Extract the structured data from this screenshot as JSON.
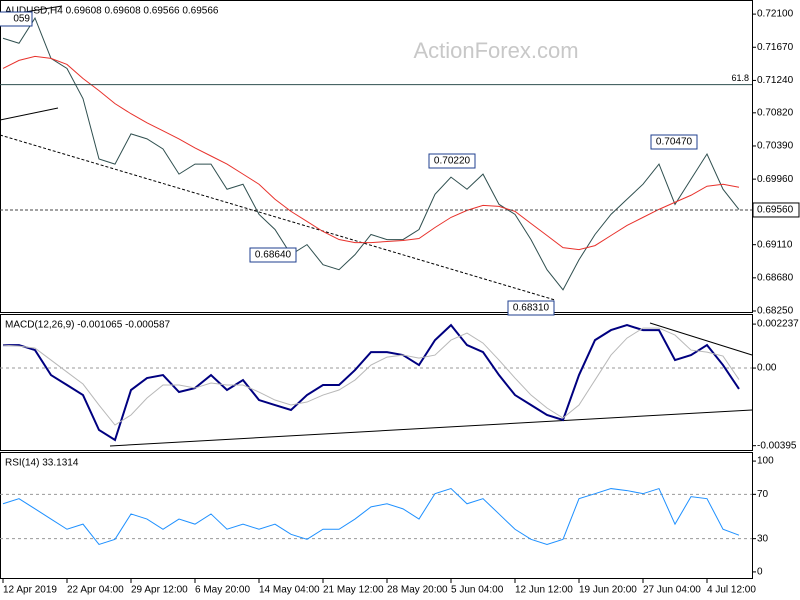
{
  "chart_data": [
    {
      "type": "line",
      "title": "AUDUSD,H4 0.69608 0.69608 0.69566 0.69566",
      "watermark": "ActionForex.com",
      "categories": [
        "12 Apr 2019",
        null,
        null,
        null,
        "22 Apr 04:00",
        null,
        null,
        null,
        "29 Apr 12:00",
        null,
        null,
        null,
        "6 May 20:00",
        null,
        null,
        null,
        "14 May 04:00",
        null,
        null,
        null,
        "21 May 12:00",
        null,
        null,
        null,
        "28 May 20:00",
        null,
        null,
        null,
        "5 Jun 04:00",
        null,
        null,
        null,
        "12 Jun 12:00",
        null,
        null,
        null,
        "19 Jun 20:00",
        null,
        null,
        null,
        "27 Jun 04:00",
        null,
        null,
        null,
        "4 Jul 12:00",
        null,
        null
      ],
      "series": [
        {
          "color": "#2f4f4f",
          "values": [
            0.71787,
            0.71722,
            0.72048,
            0.71526,
            0.71395,
            0.71004,
            0.70221,
            0.70155,
            0.70547,
            0.70482,
            0.70351,
            0.70025,
            0.70155,
            0.70155,
            0.69829,
            0.69894,
            0.69503,
            0.69307,
            0.68981,
            0.69111,
            0.6885,
            0.68785,
            0.68981,
            0.69242,
            0.69176,
            0.69176,
            0.69307,
            0.69764,
            0.69986,
            0.69829,
            0.70025,
            0.69633,
            0.69503,
            0.69176,
            0.68785,
            0.68524,
            0.68915,
            0.69242,
            0.69503,
            0.69699,
            0.69894,
            0.70155,
            0.69633,
            0.6996,
            0.70286,
            0.69829,
            0.69566
          ]
        },
        {
          "color": "#e8322c",
          "values": [
            0.71395,
            0.715,
            0.71552,
            0.71526,
            0.71447,
            0.71265,
            0.71108,
            0.70939,
            0.70808,
            0.70691,
            0.70586,
            0.70482,
            0.70364,
            0.7026,
            0.70155,
            0.70025,
            0.69894,
            0.69699,
            0.69542,
            0.69412,
            0.69281,
            0.69177,
            0.69137,
            0.69137,
            0.69151,
            0.69164,
            0.6919,
            0.69333,
            0.69464,
            0.69555,
            0.6962,
            0.69607,
            0.69542,
            0.69385,
            0.69229,
            0.69072,
            0.69046,
            0.69098,
            0.69229,
            0.69359,
            0.69464,
            0.69568,
            0.6966,
            0.69751,
            0.69868,
            0.69894,
            0.69855
          ]
        }
      ],
      "ylim": [
        0.68237,
        0.7227
      ],
      "yticks": [
        {
          "value": 0.721,
          "label": "0.72100"
        },
        {
          "value": 0.7167,
          "label": "0.71670"
        },
        {
          "value": 0.7124,
          "label": "0.71240"
        },
        {
          "value": 0.7082,
          "label": "0.70820"
        },
        {
          "value": 0.7039,
          "label": "0.70390"
        },
        {
          "value": 0.6996,
          "label": "0.69960"
        },
        {
          "value": 0.6911,
          "label": "0.69110"
        },
        {
          "value": 0.6868,
          "label": "0.68680"
        },
        {
          "value": 0.6825,
          "label": "0.68250"
        }
      ],
      "price_line": {
        "value": 0.6956,
        "label": "0.69560"
      },
      "fib_level": {
        "value": 0.71186,
        "label": "61.8"
      },
      "annotations": [
        "059",
        "0.70220",
        "0.70470",
        "0.68640",
        "0.68310"
      ]
    },
    {
      "type": "line",
      "title": "MACD(12,26,9) -0.001065 -0.000587",
      "series": [
        {
          "color": "#000080",
          "values": [
            0.00117,
            0.00117,
            0.000915,
            -0.000356,
            -0.000864,
            -0.001373,
            -0.003152,
            -0.00366,
            -0.001118,
            -0.000508,
            -0.000356,
            -0.00122,
            -0.001017,
            -0.000356,
            -0.001118,
            -0.00061,
            -0.001627,
            -0.001881,
            -0.002135,
            -0.001373,
            -0.000864,
            -0.000864,
            -0.000102,
            0.000813,
            0.000813,
            0.000661,
            0.000153,
            0.001423,
            0.002186,
            0.00117,
            0.000813,
            -0.000356,
            -0.001373,
            -0.001881,
            -0.002389,
            -0.002644,
            -0.000356,
            0.001423,
            0.001932,
            0.002186,
            0.001932,
            0.001932,
            0.000407,
            0.000661,
            0.00117,
            0.000153,
            -0.001065
          ]
        },
        {
          "color": "#b8b8b8",
          "values": [
            0.00117,
            0.001118,
            0.001017,
            0.000407,
            -0.000203,
            -0.000813,
            -0.001881,
            -0.002898,
            -0.002389,
            -0.001525,
            -0.000864,
            -0.000864,
            -0.001017,
            -0.000763,
            -0.000864,
            -0.000864,
            -0.00122,
            -0.001627,
            -0.001881,
            -0.001729,
            -0.001373,
            -0.001118,
            -0.00061,
            0.000153,
            0.000559,
            0.000661,
            0.000508,
            0.000661,
            0.001423,
            0.001779,
            0.001271,
            0.000407,
            -0.000508,
            -0.001373,
            -0.002034,
            -0.002542,
            -0.001881,
            -0.00061,
            0.000661,
            0.001525,
            0.002034,
            0.002034,
            0.001678,
            0.000915,
            0.000813,
            0.00061,
            -0.000587
          ]
        }
      ],
      "ylim": [
        -0.00417,
        0.0027
      ],
      "yticks": [
        0.002237,
        {
          "value": 0,
          "label": "0.00"
        },
        -0.00395
      ],
      "levels": [
        0
      ]
    },
    {
      "type": "line",
      "title": "RSI(14) 33.1314",
      "series": [
        {
          "color": "#1e90ff",
          "values": [
            61.5,
            66.1,
            56.9,
            47.7,
            38.5,
            43.1,
            24.8,
            29.4,
            52.3,
            47.7,
            38.5,
            47.7,
            43.1,
            52.3,
            38.5,
            43.1,
            38.5,
            43.1,
            33.9,
            29.4,
            38.5,
            38.5,
            47.7,
            58.7,
            61.5,
            56.9,
            47.7,
            70.6,
            75.2,
            61.5,
            66.1,
            52.3,
            38.5,
            29.4,
            24.8,
            29.4,
            66.1,
            70.6,
            75.2,
            73.4,
            70.6,
            75.2,
            43.1,
            67.9,
            66.1,
            38.5,
            33.1314
          ]
        }
      ],
      "ylim": [
        -5.5,
        107.3
      ],
      "yticks": [
        100,
        70,
        30,
        0
      ],
      "levels": [
        30,
        70
      ]
    }
  ]
}
